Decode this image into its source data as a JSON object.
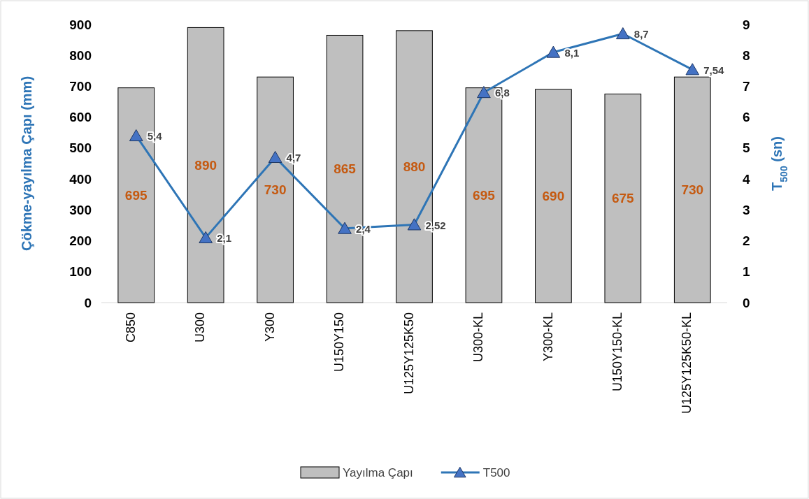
{
  "chart_data": {
    "type": "bar",
    "ylabel": "Çökme-yayılma Çapı (mm)",
    "y2label": "T$_{500}$ (sn)",
    "categories": [
      "C850",
      "U300",
      "Y300",
      "U150Y150",
      "U125Y125K50",
      "U300-KL",
      "Y300-KL",
      "U150Y150-KL",
      "U125Y125K50-KL"
    ],
    "series": [
      {
        "name": "Yayılma Çapı",
        "color": "#bfbfbf",
        "values": [
          695,
          890,
          730,
          865,
          880,
          695,
          690,
          675,
          730
        ],
        "value_labels": [
          "695",
          "890",
          "730",
          "865",
          "880",
          "695",
          "690",
          "675",
          "730"
        ]
      },
      {
        "type": "line",
        "axis": "y2",
        "name": "T500",
        "color": "#2e75b6",
        "values": [
          5.4,
          2.1,
          4.7,
          2.4,
          2.52,
          6.8,
          8.1,
          8.7,
          7.54
        ],
        "value_labels": [
          "5,4",
          "2,1",
          "4,7",
          "2,4",
          "2,52",
          "6,8",
          "8,1",
          "8,7",
          "7,54"
        ]
      }
    ],
    "ylim": [
      0,
      900
    ],
    "yticks": [
      0,
      100,
      200,
      300,
      400,
      500,
      600,
      700,
      800,
      900
    ],
    "y2lim": [
      0,
      9
    ],
    "y2ticks": [
      0,
      1,
      2,
      3,
      4,
      5,
      6,
      7,
      8,
      9
    ],
    "marker": "triangle",
    "grid": false,
    "legend": "bottom"
  }
}
